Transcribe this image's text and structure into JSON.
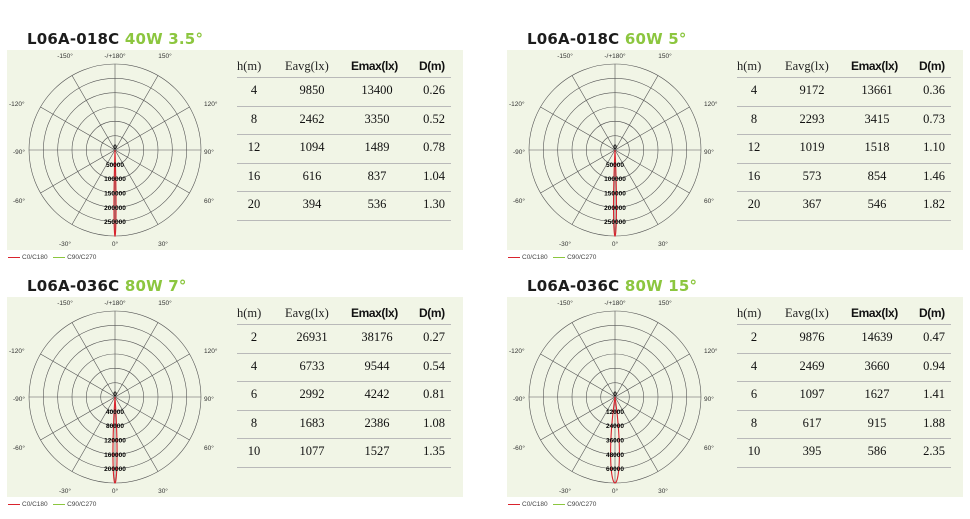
{
  "common": {
    "polar_angle_labels": {
      "top_left": "-150°",
      "top_center": "-/+180°",
      "top_right": "150°",
      "left_upper": "-120°",
      "right_upper": "120°",
      "left_mid": "-90°",
      "right_mid": "90°",
      "left_lower": "-60°",
      "right_lower": "60°",
      "bottom_left": "-30°",
      "bottom_center": "0°",
      "bottom_right": "30°"
    },
    "legend": {
      "c0_label": "C0/C180",
      "c90_label": "C90/C270",
      "c0_color": "#d9232d",
      "c90_color": "#8cc63f"
    },
    "table_headers": {
      "h": "h(m)",
      "eavg": "Eavg(lx)",
      "emax": "Emax(lx)",
      "d": "D(m)"
    },
    "colors": {
      "spec_green": "#8cc63f",
      "panel_bg": "#f1f5e6",
      "curve_red": "#d9232d"
    }
  },
  "panels": [
    {
      "model": "L06A-018C",
      "spec": "40W 3.5°",
      "center_label": "0",
      "radial_labels": [
        "50000",
        "100000",
        "150000",
        "200000",
        "250000"
      ],
      "beam_half_angle_deg": 1.75,
      "rows": [
        {
          "h": "4",
          "eavg": "9850",
          "emax": "13400",
          "d": "0.26"
        },
        {
          "h": "8",
          "eavg": "2462",
          "emax": "3350",
          "d": "0.52"
        },
        {
          "h": "12",
          "eavg": "1094",
          "emax": "1489",
          "d": "0.78"
        },
        {
          "h": "16",
          "eavg": "616",
          "emax": "837",
          "d": "1.04"
        },
        {
          "h": "20",
          "eavg": "394",
          "emax": "536",
          "d": "1.30"
        }
      ]
    },
    {
      "model": "L06A-018C",
      "spec": "60W 5°",
      "center_label": "0",
      "radial_labels": [
        "50000",
        "100000",
        "150000",
        "200000",
        "250000"
      ],
      "beam_half_angle_deg": 2.5,
      "rows": [
        {
          "h": "4",
          "eavg": "9172",
          "emax": "13661",
          "d": "0.36"
        },
        {
          "h": "8",
          "eavg": "2293",
          "emax": "3415",
          "d": "0.73"
        },
        {
          "h": "12",
          "eavg": "1019",
          "emax": "1518",
          "d": "1.10"
        },
        {
          "h": "16",
          "eavg": "573",
          "emax": "854",
          "d": "1.46"
        },
        {
          "h": "20",
          "eavg": "367",
          "emax": "546",
          "d": "1.82"
        }
      ]
    },
    {
      "model": "L06A-036C",
      "spec": "80W 7°",
      "center_label": "0",
      "radial_labels": [
        "40000",
        "80000",
        "120000",
        "160000",
        "200000"
      ],
      "beam_half_angle_deg": 3.5,
      "rows": [
        {
          "h": "2",
          "eavg": "26931",
          "emax": "38176",
          "d": "0.27"
        },
        {
          "h": "4",
          "eavg": "6733",
          "emax": "9544",
          "d": "0.54"
        },
        {
          "h": "6",
          "eavg": "2992",
          "emax": "4242",
          "d": "0.81"
        },
        {
          "h": "8",
          "eavg": "1683",
          "emax": "2386",
          "d": "1.08"
        },
        {
          "h": "10",
          "eavg": "1077",
          "emax": "1527",
          "d": "1.35"
        }
      ]
    },
    {
      "model": "L06A-036C",
      "spec": "80W 15°",
      "center_label": "0",
      "radial_labels": [
        "12000",
        "24000",
        "36000",
        "48000",
        "60000"
      ],
      "beam_half_angle_deg": 7.5,
      "rows": [
        {
          "h": "2",
          "eavg": "9876",
          "emax": "14639",
          "d": "0.47"
        },
        {
          "h": "4",
          "eavg": "2469",
          "emax": "3660",
          "d": "0.94"
        },
        {
          "h": "6",
          "eavg": "1097",
          "emax": "1627",
          "d": "1.41"
        },
        {
          "h": "8",
          "eavg": "617",
          "emax": "915",
          "d": "1.88"
        },
        {
          "h": "10",
          "eavg": "395",
          "emax": "586",
          "d": "2.35"
        }
      ]
    }
  ]
}
